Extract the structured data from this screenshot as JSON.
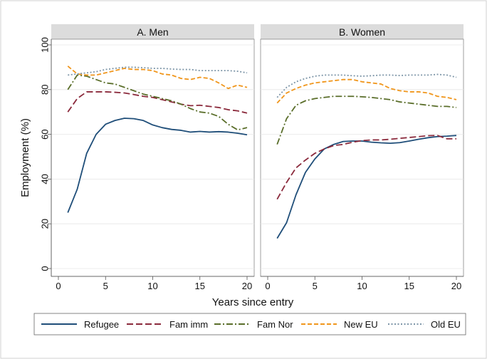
{
  "chart_data": {
    "type": "line",
    "ylabel": "Employment (%)",
    "xlabel": "Years since entry",
    "xlim": [
      0,
      20
    ],
    "ylim": [
      0,
      100
    ],
    "x_ticks": [
      "0",
      "5",
      "10",
      "15",
      "20"
    ],
    "y_ticks": [
      "0",
      "20",
      "40",
      "60",
      "80",
      "100"
    ],
    "x": [
      1,
      2,
      3,
      4,
      5,
      6,
      7,
      8,
      9,
      10,
      11,
      12,
      13,
      14,
      15,
      16,
      17,
      18,
      19,
      20
    ],
    "legend": [
      "Refugee",
      "Fam imm",
      "Fam Nor",
      "New EU",
      "Old EU"
    ],
    "colors": {
      "Refugee": "#1f4e79",
      "Fam imm": "#8b2a3c",
      "Fam Nor": "#5a6e2a",
      "New EU": "#f0961c",
      "Old EU": "#7e96a8"
    },
    "panels": [
      {
        "title": "A. Men",
        "series": [
          {
            "name": "Refugee",
            "values": [
              25,
              35.5,
              51.5,
              60,
              64.5,
              66.2,
              67.2,
              67,
              66.2,
              64.2,
              63,
              62.2,
              61.8,
              61,
              61.3,
              61,
              61.2,
              61,
              60.5,
              59.8
            ]
          },
          {
            "name": "Fam imm",
            "values": [
              70,
              76,
              79,
              79,
              79,
              78.8,
              78.5,
              77.8,
              77,
              76.5,
              75.5,
              74.5,
              73.5,
              72.8,
              73,
              72.5,
              72,
              71,
              70.5,
              69.5
            ]
          },
          {
            "name": "Fam Nor",
            "values": [
              80,
              86.5,
              86,
              84.5,
              83,
              82.5,
              81,
              79.5,
              78,
              77,
              76,
              75,
              73.5,
              71.5,
              70,
              69.5,
              68,
              64.5,
              62,
              63
            ]
          },
          {
            "name": "New EU",
            "values": [
              90.5,
              87,
              86.5,
              86.5,
              87.5,
              88.5,
              89.5,
              89,
              89,
              88.5,
              87,
              86.5,
              85,
              84.5,
              85.5,
              85,
              83,
              80.5,
              82,
              81
            ]
          },
          {
            "name": "Old EU",
            "values": [
              86.5,
              87,
              87.5,
              88,
              89,
              89.5,
              90,
              90,
              89.8,
              89.5,
              89.5,
              89.2,
              89,
              89,
              88.5,
              88.5,
              88.5,
              88.5,
              88.2,
              87.5
            ]
          }
        ]
      },
      {
        "title": "B. Women",
        "series": [
          {
            "name": "Refugee",
            "values": [
              13.5,
              20.5,
              33,
              43,
              49,
              53.5,
              55.5,
              56.8,
              57,
              57,
              56.5,
              56.2,
              56,
              56.3,
              57,
              57.8,
              58.5,
              59,
              59.2,
              59.5
            ]
          },
          {
            "name": "Fam imm",
            "values": [
              31,
              38.5,
              45,
              48.5,
              51.5,
              53.5,
              55,
              55.5,
              56.5,
              57.2,
              57.5,
              57.5,
              57.8,
              58.2,
              58.6,
              59,
              59.4,
              59.5,
              58,
              58
            ]
          },
          {
            "name": "Fam Nor",
            "values": [
              55.5,
              67,
              73,
              75,
              76,
              76.5,
              77,
              77,
              77,
              76.8,
              76.5,
              76,
              75.5,
              74.5,
              74,
              73.5,
              73,
              72.5,
              72.5,
              72
            ]
          },
          {
            "name": "New EU",
            "values": [
              74,
              78.5,
              80.5,
              82,
              83,
              83.5,
              84,
              84.5,
              84.5,
              83.5,
              83,
              82.5,
              80.5,
              79.5,
              79,
              79,
              78.5,
              77,
              76.5,
              75.5
            ]
          },
          {
            "name": "Old EU",
            "values": [
              76.5,
              81,
              83.5,
              85,
              86,
              86.5,
              86.5,
              86.5,
              86.2,
              86,
              86.2,
              86.5,
              86.5,
              86.3,
              86.5,
              86.5,
              86.5,
              86.8,
              86.5,
              85.5
            ]
          }
        ]
      }
    ]
  }
}
